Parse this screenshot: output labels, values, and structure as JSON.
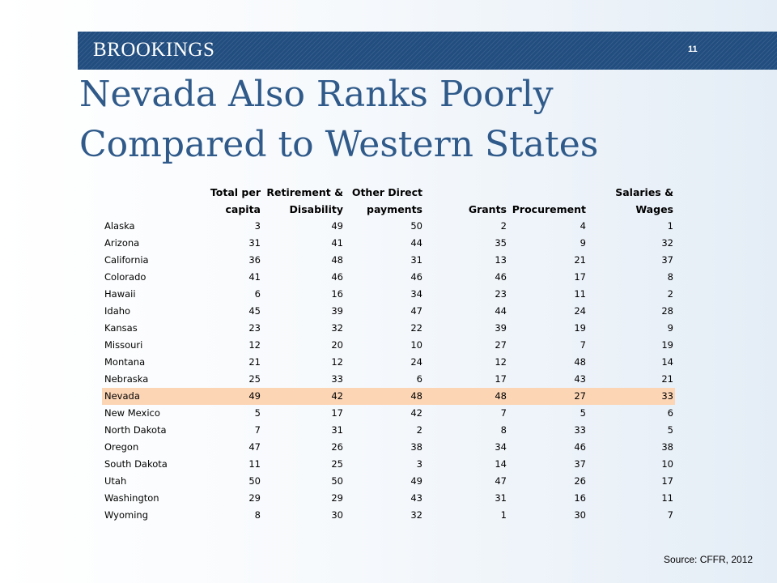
{
  "header": {
    "brand": "BROOKINGS",
    "page_number": "11"
  },
  "title": {
    "line1": "Nevada Also Ranks Poorly",
    "line2": "Compared to Western States"
  },
  "table": {
    "columns": [
      {
        "line1": "",
        "line2": ""
      },
      {
        "line1": "Total per",
        "line2": "capita"
      },
      {
        "line1": "Retirement &",
        "line2": "Disability"
      },
      {
        "line1": "Other Direct",
        "line2": "payments"
      },
      {
        "line1": "",
        "line2": "Grants"
      },
      {
        "line1": "",
        "line2": "Procurement"
      },
      {
        "line1": "Salaries &",
        "line2": "Wages"
      }
    ],
    "highlighted_row": "Nevada",
    "highlight_color": "#fcd5b5",
    "rows": [
      [
        "Alaska",
        "3",
        "49",
        "50",
        "2",
        "4",
        "1"
      ],
      [
        "Arizona",
        "31",
        "41",
        "44",
        "35",
        "9",
        "32"
      ],
      [
        "California",
        "36",
        "48",
        "31",
        "13",
        "21",
        "37"
      ],
      [
        "Colorado",
        "41",
        "46",
        "46",
        "46",
        "17",
        "8"
      ],
      [
        "Hawaii",
        "6",
        "16",
        "34",
        "23",
        "11",
        "2"
      ],
      [
        "Idaho",
        "45",
        "39",
        "47",
        "44",
        "24",
        "28"
      ],
      [
        "Kansas",
        "23",
        "32",
        "22",
        "39",
        "19",
        "9"
      ],
      [
        "Missouri",
        "12",
        "20",
        "10",
        "27",
        "7",
        "19"
      ],
      [
        "Montana",
        "21",
        "12",
        "24",
        "12",
        "48",
        "14"
      ],
      [
        "Nebraska",
        "25",
        "33",
        "6",
        "17",
        "43",
        "21"
      ],
      [
        "Nevada",
        "49",
        "42",
        "48",
        "48",
        "27",
        "33"
      ],
      [
        "New Mexico",
        "5",
        "17",
        "42",
        "7",
        "5",
        "6"
      ],
      [
        "North Dakota",
        "7",
        "31",
        "2",
        "8",
        "33",
        "5"
      ],
      [
        "Oregon",
        "47",
        "26",
        "38",
        "34",
        "46",
        "38"
      ],
      [
        "South Dakota",
        "11",
        "25",
        "3",
        "14",
        "37",
        "10"
      ],
      [
        "Utah",
        "50",
        "50",
        "49",
        "47",
        "26",
        "17"
      ],
      [
        "Washington",
        "29",
        "29",
        "43",
        "31",
        "16",
        "11"
      ],
      [
        "Wyoming",
        "8",
        "30",
        "32",
        "1",
        "30",
        "7"
      ]
    ]
  },
  "source": "Source: CFFR, 2012",
  "colors": {
    "header_band": "#214d7f",
    "title": "#2f5a8a"
  }
}
